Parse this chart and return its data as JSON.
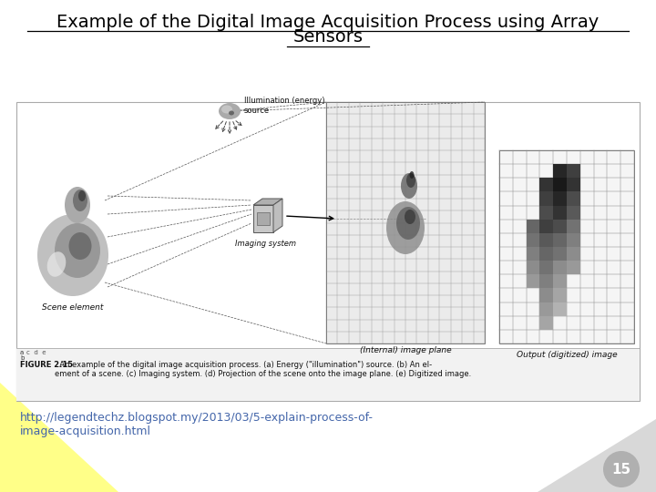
{
  "title_line1": "Example of the Digital Image Acquisition Process using Array",
  "title_line2": "Sensors",
  "url_text": "http://legendtechz.blogspot.my/2013/03/5-explain-process-of-\nimage-acquisition.html",
  "page_number": "15",
  "background_color": "#ffffff",
  "title_color": "#000000",
  "url_color": "#4466aa",
  "page_circle_color": "#b0b0b0",
  "page_number_color": "#ffffff",
  "yellow_color": "#ffff88",
  "gray_corner_color": "#d8d8d8",
  "figure_caption_bold": "FIGURE 2.15",
  "figure_caption_rest": "  An example of the digital image acquisition process. (a) Energy (\"illumination\") source. (b) An el-\nement of a scene. (c) Imaging system. (d) Projection of the scene onto the image plane. (e) Digitized image.",
  "title_fontsize": 14,
  "url_fontsize": 9,
  "page_fontsize": 11,
  "caption_fontsize": 6.0
}
